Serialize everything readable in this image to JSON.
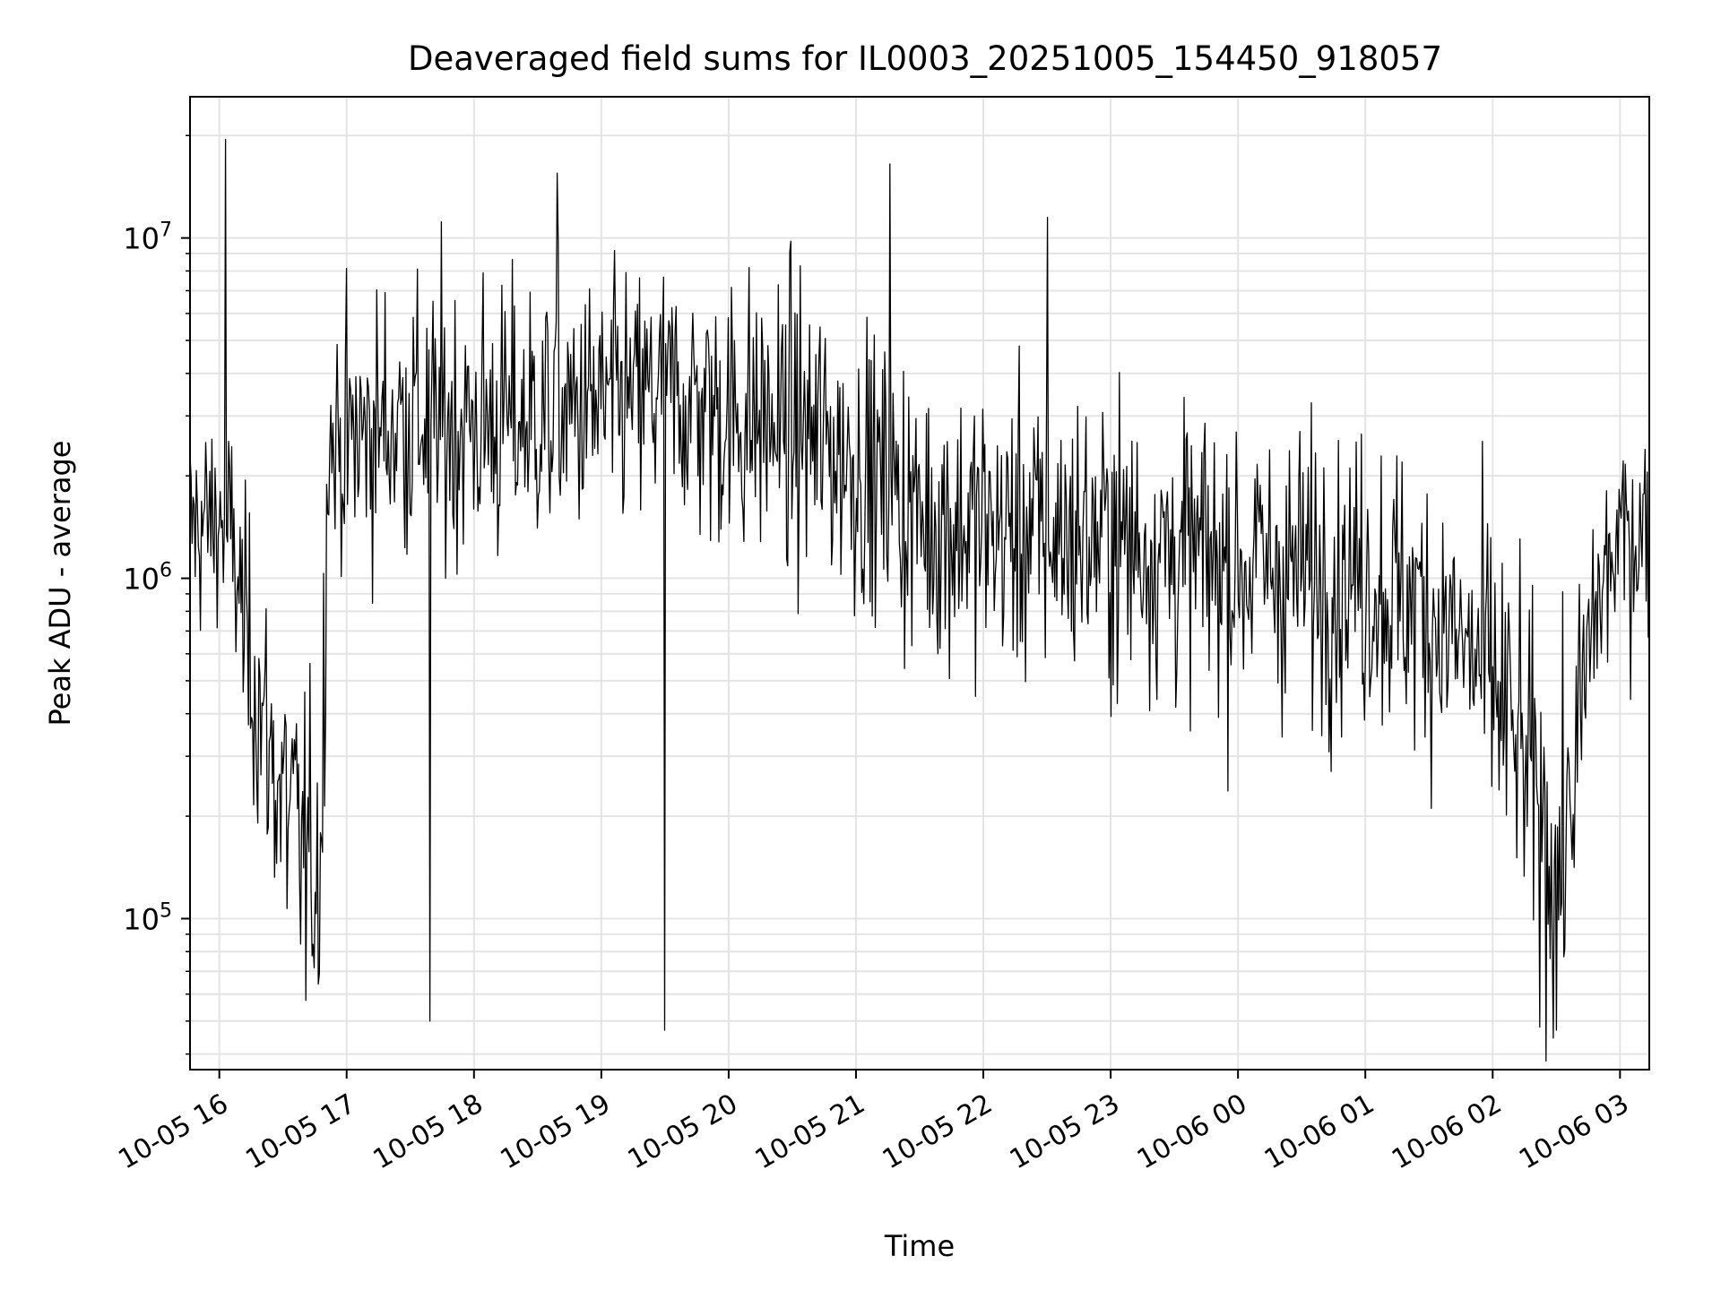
{
  "chart_data": {
    "type": "line",
    "title": "Deaveraged field sums for IL0003_20251005_154450_918057",
    "xlabel": "Time",
    "ylabel": "Peak ADU - average",
    "y_scale": "log",
    "ylim": [
      36000,
      26000000
    ],
    "xlim_hours_since_16": [
      -0.23,
      11.23
    ],
    "x_ticks": [
      {
        "h": 0,
        "label": "10-05 16"
      },
      {
        "h": 1,
        "label": "10-05 17"
      },
      {
        "h": 2,
        "label": "10-05 18"
      },
      {
        "h": 3,
        "label": "10-05 19"
      },
      {
        "h": 4,
        "label": "10-05 20"
      },
      {
        "h": 5,
        "label": "10-05 21"
      },
      {
        "h": 6,
        "label": "10-05 22"
      },
      {
        "h": 7,
        "label": "10-05 23"
      },
      {
        "h": 8,
        "label": "10-06 00"
      },
      {
        "h": 9,
        "label": "10-06 01"
      },
      {
        "h": 10,
        "label": "10-06 02"
      },
      {
        "h": 11,
        "label": "10-06 03"
      }
    ],
    "y_ticks": [
      {
        "value": 100000,
        "base": "10",
        "exp": "5"
      },
      {
        "value": 1000000,
        "base": "10",
        "exp": "6"
      },
      {
        "value": 10000000,
        "base": "10",
        "exp": "7"
      }
    ],
    "grid": true,
    "line_color": "#000000",
    "envelope": {
      "description": "approximate median level of the noisy series at hourly-ish anchor points (hours since 10-05 16:00)",
      "x": [
        -0.23,
        0.0,
        0.1,
        0.2,
        0.4,
        0.55,
        0.7,
        0.8,
        0.85,
        1.0,
        1.5,
        2.0,
        3.0,
        3.5,
        4.0,
        4.5,
        5.0,
        5.5,
        6.0,
        7.0,
        8.0,
        9.0,
        9.5,
        10.0,
        10.3,
        10.5,
        10.6,
        10.8,
        11.0,
        11.23
      ],
      "median": [
        1400000,
        1500000,
        1300000,
        700000,
        300000,
        200000,
        140000,
        150000,
        2500000,
        2500000,
        3000000,
        2800000,
        3200000,
        3500000,
        3000000,
        2800000,
        2200000,
        1500000,
        1400000,
        1300000,
        1100000,
        1000000,
        800000,
        500000,
        250000,
        130000,
        200000,
        800000,
        1300000,
        1400000
      ],
      "spread_decades": [
        0.3,
        0.3,
        0.3,
        0.35,
        0.4,
        0.45,
        0.45,
        0.45,
        0.35,
        0.35,
        0.4,
        0.4,
        0.35,
        0.35,
        0.4,
        0.4,
        0.4,
        0.4,
        0.4,
        0.4,
        0.4,
        0.4,
        0.4,
        0.45,
        0.45,
        0.45,
        0.45,
        0.35,
        0.3,
        0.3
      ]
    },
    "notable_points": [
      {
        "h": 0.05,
        "value": 19500000,
        "note": "tallest spike"
      },
      {
        "h": 5.27,
        "value": 16500000
      },
      {
        "h": 2.65,
        "value": 15500000
      },
      {
        "h": 6.5,
        "value": 11500000
      },
      {
        "h": 1.65,
        "value": 50000,
        "note": "deep dip"
      },
      {
        "h": 3.5,
        "value": 47000,
        "note": "deep dip"
      },
      {
        "h": 10.5,
        "value": 47000,
        "note": "lowest dip"
      }
    ],
    "point_count": 1400
  }
}
